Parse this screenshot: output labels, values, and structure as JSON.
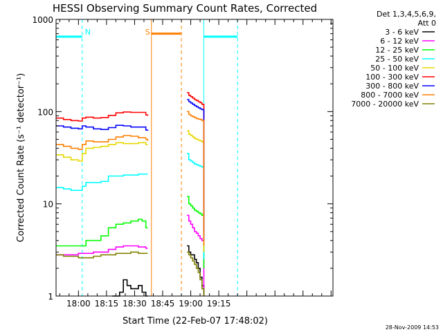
{
  "chart_data": {
    "type": "line",
    "title": "HESSI Observing Summary Count Rates, Corrected",
    "xlabel": "Start Time (22-Feb-07 17:48:02)",
    "ylabel": "Corrected Count Rate (s⁻¹ detector⁻¹)",
    "yscale": "log",
    "xlim": [
      "17:48:02",
      "20:16:00"
    ],
    "ylim": [
      1,
      1000
    ],
    "x_ticks": [
      "18:00",
      "18:15",
      "18:30",
      "18:45",
      "19:00",
      "19:15"
    ],
    "y_ticks": [
      "1",
      "10",
      "100",
      "1000"
    ],
    "legend_title": [
      "Det 1,3,4,5,6,9,",
      "Att 0"
    ],
    "legend_position": "outside-right",
    "footer": "28-Nov-2009 14:53",
    "flags": [
      {
        "label": "N",
        "color": "#00ffff",
        "level": 650,
        "segments": [
          [
            "17:48:02",
            "18:02"
          ],
          [
            "19:07",
            "19:25"
          ]
        ],
        "boundaries": [
          "18:02",
          "19:07",
          "19:25"
        ],
        "dashed": [
          "18:02",
          "19:25"
        ]
      },
      {
        "label": "S",
        "color": "#ff7f00",
        "level": 700,
        "segments": [
          [
            "18:39",
            "18:55"
          ]
        ],
        "boundaries": [
          "18:39",
          "18:55"
        ],
        "dashed": [
          "18:55"
        ]
      }
    ],
    "gap": [
      "18:38",
      "18:55"
    ],
    "series": [
      {
        "name": "3 - 6 keV",
        "color": "#000000",
        "segments": [
          {
            "x": [
              "18:18",
              "18:20",
              "18:22",
              "18:24",
              "18:26",
              "18:28",
              "18:30",
              "18:32",
              "18:34",
              "18:36",
              "18:37"
            ],
            "y": [
              1,
              1,
              1.1,
              1.5,
              1.3,
              1.2,
              1.2,
              1.3,
              1.1,
              1.0,
              1.0
            ]
          },
          {
            "x": [
              "18:58",
              "18:59",
              "19:00",
              "19:01",
              "19:02",
              "19:03",
              "19:04",
              "19:05",
              "19:06",
              "19:07"
            ],
            "y": [
              3.5,
              3,
              2.8,
              2.8,
              2.5,
              2.3,
              2.0,
              1.6,
              1.3,
              1.0
            ]
          }
        ]
      },
      {
        "name": "6 - 12 keV",
        "color": "#ff00ff",
        "segments": [
          {
            "x": [
              "17:48",
              "17:52",
              "17:56",
              "18:00",
              "18:04",
              "18:08",
              "18:12",
              "18:16",
              "18:20",
              "18:24",
              "18:28",
              "18:32",
              "18:36",
              "18:37"
            ],
            "y": [
              2.8,
              2.8,
              2.8,
              2.9,
              2.9,
              3.0,
              3.0,
              3.2,
              3.4,
              3.5,
              3.5,
              3.4,
              3.3,
              3.3
            ]
          },
          {
            "x": [
              "18:58",
              "18:59",
              "19:00",
              "19:01",
              "19:02",
              "19:03",
              "19:04",
              "19:05",
              "19:06",
              "19:07"
            ],
            "y": [
              7.5,
              6.5,
              6.0,
              5.5,
              5.0,
              4.8,
              4.5,
              4.2,
              4.0,
              1.2
            ]
          }
        ]
      },
      {
        "name": "12 - 25 keV",
        "color": "#00ff00",
        "segments": [
          {
            "x": [
              "17:48",
              "17:52",
              "17:56",
              "18:00",
              "18:04",
              "18:08",
              "18:12",
              "18:16",
              "18:20",
              "18:24",
              "18:28",
              "18:32",
              "18:34",
              "18:36",
              "18:37"
            ],
            "y": [
              3.5,
              3.5,
              3.5,
              3.5,
              4.0,
              4.0,
              4.5,
              5.5,
              6.0,
              6.2,
              6.5,
              6.8,
              6.5,
              5.5,
              5.5
            ]
          },
          {
            "x": [
              "18:58",
              "18:59",
              "19:00",
              "19:01",
              "19:02",
              "19:03",
              "19:04",
              "19:05",
              "19:06",
              "19:07"
            ],
            "y": [
              12,
              10,
              9.5,
              9,
              8.5,
              8.3,
              8.0,
              7.8,
              7.5,
              2.0
            ]
          }
        ]
      },
      {
        "name": "25 - 50 keV",
        "color": "#00ffff",
        "segments": [
          {
            "x": [
              "17:48",
              "17:52",
              "17:56",
              "18:00",
              "18:02",
              "18:04",
              "18:08",
              "18:12",
              "18:16",
              "18:20",
              "18:24",
              "18:28",
              "18:32",
              "18:36",
              "18:37"
            ],
            "y": [
              15,
              14.5,
              14,
              14,
              15.5,
              17,
              17,
              17.5,
              20,
              20,
              20.5,
              20.5,
              21,
              21,
              21
            ]
          },
          {
            "x": [
              "18:58",
              "18:59",
              "19:00",
              "19:01",
              "19:02",
              "19:03",
              "19:04",
              "19:05",
              "19:06",
              "19:07"
            ],
            "y": [
              35,
              30,
              29,
              28,
              27,
              26.5,
              26,
              25.5,
              25,
              2.5
            ]
          }
        ]
      },
      {
        "name": "50 - 100 keV",
        "color": "#e6d800",
        "segments": [
          {
            "x": [
              "17:48",
              "17:52",
              "17:56",
              "18:00",
              "18:02",
              "18:04",
              "18:08",
              "18:12",
              "18:16",
              "18:20",
              "18:24",
              "18:28",
              "18:32",
              "18:36",
              "18:37"
            ],
            "y": [
              34,
              32,
              30,
              29,
              35,
              40,
              41,
              42,
              44,
              46,
              45,
              45,
              46,
              44,
              44
            ]
          },
          {
            "x": [
              "18:58",
              "18:59",
              "19:00",
              "19:01",
              "19:02",
              "19:03",
              "19:04",
              "19:05",
              "19:06",
              "19:07"
            ],
            "y": [
              62,
              57,
              55,
              53,
              51,
              50,
              49,
              48,
              47,
              3
            ]
          }
        ]
      },
      {
        "name": "100 - 300 keV",
        "color": "#ff0000",
        "segments": [
          {
            "x": [
              "17:48",
              "17:52",
              "17:56",
              "18:00",
              "18:02",
              "18:04",
              "18:08",
              "18:12",
              "18:16",
              "18:20",
              "18:24",
              "18:28",
              "18:32",
              "18:36",
              "18:37"
            ],
            "y": [
              85,
              82,
              80,
              79,
              85,
              87,
              85,
              86,
              91,
              97,
              99,
              98,
              98,
              92,
              90
            ]
          },
          {
            "x": [
              "18:58",
              "18:59",
              "19:00",
              "19:01",
              "19:02",
              "19:03",
              "19:04",
              "19:05",
              "19:06",
              "19:07"
            ],
            "y": [
              160,
              150,
              145,
              140,
              135,
              132,
              128,
              125,
              120,
              5
            ]
          }
        ]
      },
      {
        "name": "300 - 800 keV",
        "color": "#0000ff",
        "segments": [
          {
            "x": [
              "17:48",
              "17:52",
              "17:56",
              "18:00",
              "18:02",
              "18:04",
              "18:08",
              "18:12",
              "18:16",
              "18:20",
              "18:24",
              "18:28",
              "18:32",
              "18:36",
              "18:37"
            ],
            "y": [
              70,
              68,
              66,
              65,
              70,
              68,
              65,
              64,
              67,
              71,
              70,
              68,
              68,
              63,
              62
            ]
          },
          {
            "x": [
              "18:58",
              "18:59",
              "19:00",
              "19:01",
              "19:02",
              "19:03",
              "19:04",
              "19:05",
              "19:06",
              "19:07"
            ],
            "y": [
              135,
              128,
              124,
              120,
              116,
              113,
              110,
              107,
              105,
              4
            ]
          }
        ]
      },
      {
        "name": "800 - 7000 keV",
        "color": "#ff7f00",
        "segments": [
          {
            "x": [
              "17:48",
              "17:52",
              "17:56",
              "18:00",
              "18:02",
              "18:04",
              "18:08",
              "18:12",
              "18:16",
              "18:20",
              "18:24",
              "18:28",
              "18:32",
              "18:36",
              "18:37"
            ],
            "y": [
              44,
              42,
              40,
              39,
              44,
              48,
              47,
              47,
              50,
              53,
              55,
              54,
              52,
              50,
              48
            ]
          },
          {
            "x": [
              "18:58",
              "18:59",
              "19:00",
              "19:01",
              "19:02",
              "19:03",
              "19:04",
              "19:05",
              "19:06",
              "19:07"
            ],
            "y": [
              100,
              93,
              90,
              88,
              86,
              84,
              83,
              82,
              80,
              3.5
            ]
          }
        ]
      },
      {
        "name": "7000 - 20000 keV",
        "color": "#808000",
        "segments": [
          {
            "x": [
              "17:48",
              "17:52",
              "17:56",
              "18:00",
              "18:04",
              "18:08",
              "18:12",
              "18:16",
              "18:20",
              "18:24",
              "18:28",
              "18:32",
              "18:36",
              "18:37"
            ],
            "y": [
              2.8,
              2.7,
              2.7,
              2.6,
              2.6,
              2.7,
              2.8,
              2.8,
              2.9,
              2.9,
              3.0,
              2.9,
              2.9,
              2.9
            ]
          },
          {
            "x": [
              "18:58",
              "18:59",
              "19:00",
              "19:01",
              "19:02",
              "19:03",
              "19:04",
              "19:05",
              "19:06",
              "19:07"
            ],
            "y": [
              3.0,
              2.8,
              2.6,
              2.4,
              2.2,
              2.0,
              1.8,
              1.5,
              1.2,
              1.0
            ]
          }
        ]
      }
    ]
  }
}
